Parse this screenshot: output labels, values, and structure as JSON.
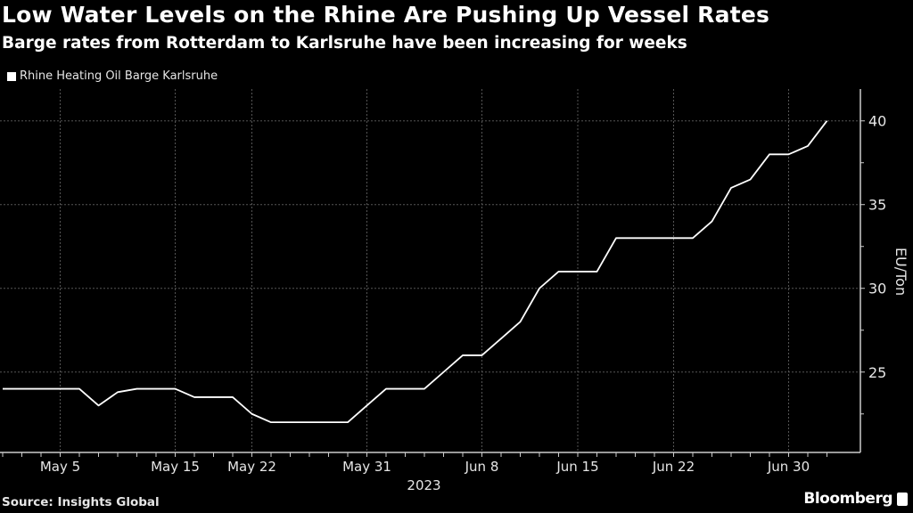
{
  "header": {
    "title": "Low Water Levels on the Rhine Are Pushing Up Vessel Rates",
    "subtitle": "Barge rates from Rotterdam to Karlsruhe have been increasing for weeks"
  },
  "footer": {
    "source": "Source: Insights Global",
    "brand": "Bloomberg"
  },
  "chart_data": {
    "type": "line",
    "title": "Low Water Levels on the Rhine Are Pushing Up Vessel Rates",
    "subtitle": "Barge rates from Rotterdam to Karlsruhe have been increasing for weeks",
    "xlabel": "2023",
    "ylabel": "EU/Ton",
    "ylim": [
      20.2,
      41.9
    ],
    "y_axis_side": "right",
    "y_ticks": [
      25,
      30,
      35,
      40
    ],
    "x_tick_labels": [
      "May 5",
      "May 15",
      "May 22",
      "May 31",
      "Jun 8",
      "Jun 15",
      "Jun 22",
      "Jun 30"
    ],
    "grid": true,
    "legend_position": "top-left",
    "line_color": "#ffffff",
    "background_color": "#000000",
    "x": [
      "May 2",
      "May 3",
      "May 4",
      "May 5",
      "May 8",
      "May 9",
      "May 10",
      "May 11",
      "May 12",
      "May 15",
      "May 16",
      "May 17",
      "May 19",
      "May 22",
      "May 23",
      "May 24",
      "May 25",
      "May 26",
      "May 30",
      "May 31",
      "Jun 1",
      "Jun 2",
      "Jun 5",
      "Jun 6",
      "Jun 7",
      "Jun 8",
      "Jun 9",
      "Jun 12",
      "Jun 13",
      "Jun 14",
      "Jun 15",
      "Jun 16",
      "Jun 19",
      "Jun 20",
      "Jun 21",
      "Jun 22",
      "Jun 23",
      "Jun 26",
      "Jun 27",
      "Jun 28",
      "Jun 29",
      "Jun 30",
      "Jul 3",
      "Jul 4"
    ],
    "series": [
      {
        "name": "Rhine Heating Oil Barge Karlsruhe",
        "values": [
          24,
          24,
          24,
          24,
          24,
          23,
          23.8,
          24,
          24,
          24,
          23.5,
          23.5,
          23.5,
          22.5,
          22,
          22,
          22,
          22,
          22,
          23,
          24,
          24,
          24,
          25,
          26,
          26,
          27,
          28,
          30,
          31,
          31,
          31,
          33,
          33,
          33,
          33,
          33,
          34,
          36,
          36.5,
          38,
          38,
          38.5,
          40
        ]
      }
    ]
  }
}
